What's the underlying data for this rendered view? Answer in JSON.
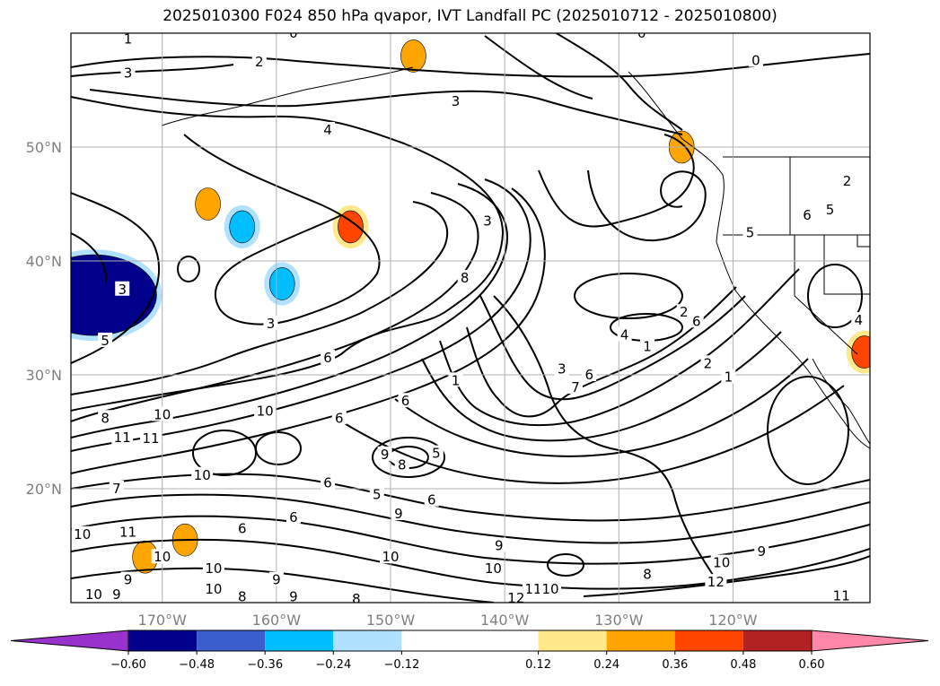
{
  "chart_data": {
    "type": "contour",
    "title": "2025010300 F024 850 hPa qvapor, IVT Landfall PC (2025010712 - 2025010800)",
    "map": {
      "lon_range": [
        -178,
        -108
      ],
      "lat_range": [
        10,
        60
      ],
      "xticks": [
        -170,
        -160,
        -150,
        -140,
        -130,
        -120
      ],
      "xtick_labels": [
        "170°W",
        "160°W",
        "150°W",
        "140°W",
        "130°W",
        "120°W"
      ],
      "yticks": [
        20,
        30,
        40,
        50
      ],
      "ytick_labels": [
        "20°N",
        "30°N",
        "40°N",
        "50°N"
      ],
      "grid": true
    },
    "colorbar": {
      "orientation": "horizontal",
      "extend": "both",
      "boundaries": [
        -0.72,
        -0.6,
        -0.48,
        -0.36,
        -0.24,
        -0.12,
        0.12,
        0.24,
        0.36,
        0.48,
        0.6,
        0.72
      ],
      "tick_values": [
        -0.6,
        -0.48,
        -0.36,
        -0.24,
        -0.12,
        0.12,
        0.24,
        0.36,
        0.48,
        0.6
      ],
      "tick_labels": [
        "−0.60",
        "−0.48",
        "−0.36",
        "−0.24",
        "−0.12",
        "0.12",
        "0.24",
        "0.36",
        "0.48",
        "0.60"
      ],
      "colors": [
        "#9932cc",
        "#00008b",
        "#3a5fcd",
        "#00bfff",
        "#b0e2ff",
        "#ffffff",
        "#ffe98a",
        "#ffa500",
        "#ff4500",
        "#b22222",
        "#ff88aa"
      ]
    },
    "shaded_regions": [
      {
        "level": -0.6,
        "lon": -176,
        "lat": 37
      },
      {
        "level": -0.36,
        "lon": -159.5,
        "lat": 38
      },
      {
        "level": -0.36,
        "lon": -163,
        "lat": 43
      },
      {
        "level": 0.36,
        "lon": -153.5,
        "lat": 43
      },
      {
        "level": 0.24,
        "lon": -166,
        "lat": 45
      },
      {
        "level": 0.24,
        "lon": -148,
        "lat": 58
      },
      {
        "level": 0.24,
        "lon": -124.5,
        "lat": 50
      },
      {
        "level": 0.36,
        "lon": -108.5,
        "lat": 32
      },
      {
        "level": 0.24,
        "lon": -171.5,
        "lat": 14
      },
      {
        "level": 0.24,
        "lon": -168,
        "lat": 15.5
      }
    ],
    "contour_labels": [
      {
        "text": "1",
        "lon": -173,
        "lat": 59.5
      },
      {
        "text": "0",
        "lon": -158.5,
        "lat": 60
      },
      {
        "text": "0",
        "lon": -128,
        "lat": 60
      },
      {
        "text": "2",
        "lon": -161.5,
        "lat": 57.5
      },
      {
        "text": "0",
        "lon": -118,
        "lat": 57.6
      },
      {
        "text": "3",
        "lon": -173,
        "lat": 56.5
      },
      {
        "text": "3",
        "lon": -144.3,
        "lat": 54
      },
      {
        "text": "4",
        "lon": -155.5,
        "lat": 51.5
      },
      {
        "text": "3",
        "lon": -141.5,
        "lat": 43.5
      },
      {
        "text": "2",
        "lon": -110,
        "lat": 47
      },
      {
        "text": "6",
        "lon": -113.5,
        "lat": 44
      },
      {
        "text": "5",
        "lon": -111.5,
        "lat": 44.5
      },
      {
        "text": "5",
        "lon": -118.5,
        "lat": 42.5
      },
      {
        "text": "8",
        "lon": -143.5,
        "lat": 38.5
      },
      {
        "text": "3",
        "lon": -173.5,
        "lat": 37.5
      },
      {
        "text": "3",
        "lon": -160.5,
        "lat": 34.5
      },
      {
        "text": "2",
        "lon": -124.3,
        "lat": 35.5
      },
      {
        "text": "6",
        "lon": -123.2,
        "lat": 34.7
      },
      {
        "text": "4",
        "lon": -109,
        "lat": 34.8
      },
      {
        "text": "5",
        "lon": -175,
        "lat": 33
      },
      {
        "text": "4",
        "lon": -129.5,
        "lat": 33.5
      },
      {
        "text": "1",
        "lon": -127.5,
        "lat": 32.5
      },
      {
        "text": "6",
        "lon": -155.5,
        "lat": 31.5
      },
      {
        "text": "2",
        "lon": -122.2,
        "lat": 31
      },
      {
        "text": "1",
        "lon": -120.4,
        "lat": 29.8
      },
      {
        "text": "3",
        "lon": -135,
        "lat": 30.5
      },
      {
        "text": "6",
        "lon": -132.6,
        "lat": 30
      },
      {
        "text": "1",
        "lon": -144.3,
        "lat": 29.5
      },
      {
        "text": "7",
        "lon": -133.8,
        "lat": 28.9
      },
      {
        "text": "6",
        "lon": -148.7,
        "lat": 27.7
      },
      {
        "text": "8",
        "lon": -175,
        "lat": 26.2
      },
      {
        "text": "10",
        "lon": -170,
        "lat": 26.5
      },
      {
        "text": "10",
        "lon": -161,
        "lat": 26.8
      },
      {
        "text": "6",
        "lon": -154.5,
        "lat": 26.2
      },
      {
        "text": "11",
        "lon": -173.5,
        "lat": 24.5
      },
      {
        "text": "11",
        "lon": -171,
        "lat": 24.4
      },
      {
        "text": "9",
        "lon": -150.5,
        "lat": 23
      },
      {
        "text": "5",
        "lon": -146,
        "lat": 23.1
      },
      {
        "text": "10",
        "lon": -166.5,
        "lat": 21.2
      },
      {
        "text": "8",
        "lon": -149,
        "lat": 22.1
      },
      {
        "text": "6",
        "lon": -155.5,
        "lat": 20.5
      },
      {
        "text": "7",
        "lon": -174,
        "lat": 20
      },
      {
        "text": "5",
        "lon": -151.2,
        "lat": 19.5
      },
      {
        "text": "6",
        "lon": -146.4,
        "lat": 19
      },
      {
        "text": "6",
        "lon": -158.5,
        "lat": 17.5
      },
      {
        "text": "9",
        "lon": -149.3,
        "lat": 17.8
      },
      {
        "text": "10",
        "lon": -177,
        "lat": 16
      },
      {
        "text": "6",
        "lon": -163,
        "lat": 16.5
      },
      {
        "text": "11",
        "lon": -173,
        "lat": 16.2
      },
      {
        "text": "9",
        "lon": -140.5,
        "lat": 15
      },
      {
        "text": "10",
        "lon": -170,
        "lat": 14
      },
      {
        "text": "10",
        "lon": -150,
        "lat": 14
      },
      {
        "text": "10",
        "lon": -165.5,
        "lat": 13
      },
      {
        "text": "10",
        "lon": -141,
        "lat": 13
      },
      {
        "text": "8",
        "lon": -127.5,
        "lat": 12.5
      },
      {
        "text": "10",
        "lon": -121,
        "lat": 13.5
      },
      {
        "text": "9",
        "lon": -117.5,
        "lat": 14.5
      },
      {
        "text": "9",
        "lon": -173,
        "lat": 12
      },
      {
        "text": "9",
        "lon": -160,
        "lat": 12
      },
      {
        "text": "12",
        "lon": -121.5,
        "lat": 11.8
      },
      {
        "text": "10",
        "lon": -165.5,
        "lat": 11.2
      },
      {
        "text": "11",
        "lon": -137.5,
        "lat": 11.2
      },
      {
        "text": "10",
        "lon": -136,
        "lat": 11.2
      },
      {
        "text": "10",
        "lon": -176,
        "lat": 10.7
      },
      {
        "text": "9",
        "lon": -174,
        "lat": 10.7
      },
      {
        "text": "8",
        "lon": -163,
        "lat": 10.5
      },
      {
        "text": "9",
        "lon": -158.5,
        "lat": 10.5
      },
      {
        "text": "8",
        "lon": -153,
        "lat": 10.3
      },
      {
        "text": "12",
        "lon": -139,
        "lat": 10.4
      },
      {
        "text": "11",
        "lon": -110.5,
        "lat": 10.6
      }
    ]
  }
}
